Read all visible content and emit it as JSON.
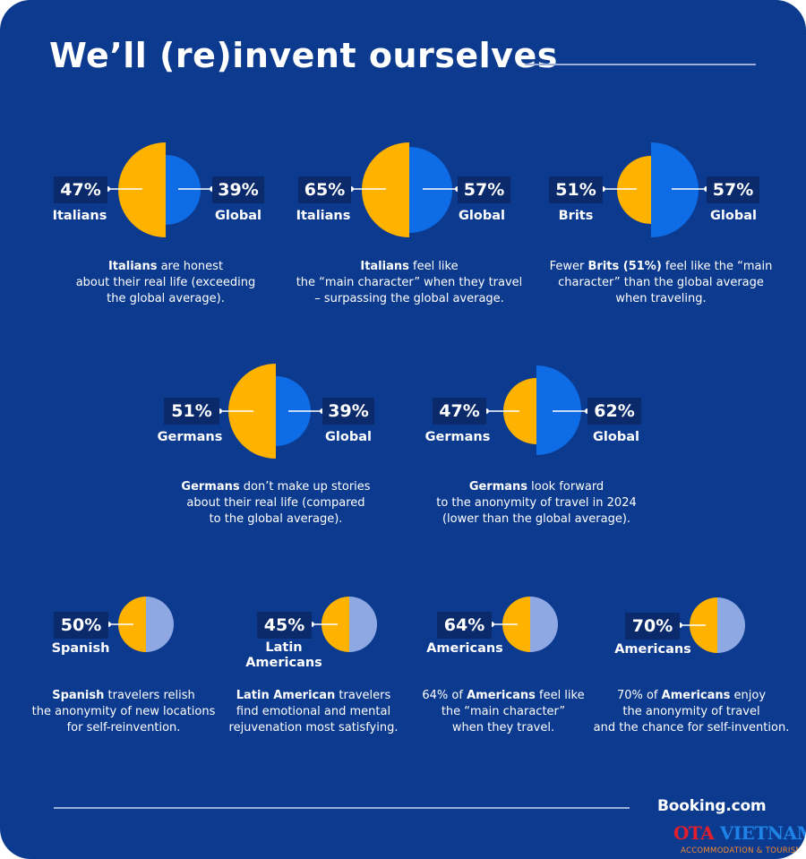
{
  "page": {
    "title": "We’ll (re)invent ourselves"
  },
  "colors": {
    "background": "#0c3a8e",
    "local": "#ffb200",
    "global": "#0e6ce6",
    "light_global": "#8ea8e3",
    "chip": "#0a2a6b"
  },
  "stats": [
    {
      "left_pct": "47%",
      "left_label": "Italians",
      "right_pct": "39%",
      "right_label": "Global",
      "desc_bold": "Italians",
      "desc_line1": " are honest",
      "desc_line2": "about their real life (exceeding",
      "desc_line3": "the global average)."
    },
    {
      "left_pct": "65%",
      "left_label": "Italians",
      "right_pct": "57%",
      "right_label": "Global",
      "desc_bold": "Italians",
      "desc_line1": " feel like",
      "desc_line2": "the “main character” when they travel",
      "desc_line3": "– surpassing the global average."
    },
    {
      "left_pct": "51%",
      "left_label": "Brits",
      "right_pct": "57%",
      "right_label": "Global",
      "desc_pre": "Fewer ",
      "desc_bold": "Brits (51%)",
      "desc_line1": " feel like the “main",
      "desc_line2": "character” than the global average",
      "desc_line3": "when traveling."
    },
    {
      "left_pct": "51%",
      "left_label": "Germans",
      "right_pct": "39%",
      "right_label": "Global",
      "desc_bold": "Germans",
      "desc_line1": " don’t make up stories",
      "desc_line2": "about their real life (compared",
      "desc_line3": "to the global average)."
    },
    {
      "left_pct": "47%",
      "left_label": "Germans",
      "right_pct": "62%",
      "right_label": "Global",
      "desc_bold": "Germans",
      "desc_line1": " look forward",
      "desc_line2": "to the anonymity of travel in 2024",
      "desc_line3": "(lower than the global average)."
    },
    {
      "left_pct": "50%",
      "left_label": "Spanish",
      "desc_bold": "Spanish",
      "desc_line1": " travelers relish",
      "desc_line2": "the anonymity of new locations",
      "desc_line3": "for self-reinvention."
    },
    {
      "left_pct": "45%",
      "left_label_1": "Latin",
      "left_label_2": "Americans",
      "desc_bold": "Latin American",
      "desc_line1": " travelers",
      "desc_line2": "find emotional and mental",
      "desc_line3": "rejuvenation most satisfying."
    },
    {
      "left_pct": "64%",
      "left_label": "Americans",
      "desc_pre": "64% of ",
      "desc_bold": "Americans",
      "desc_line1": " feel like",
      "desc_line2": "the “main character”",
      "desc_line3": "when they travel."
    },
    {
      "left_pct": "70%",
      "left_label": "Americans",
      "desc_pre": "70% of ",
      "desc_bold": "Americans",
      "desc_line1": " enjoy",
      "desc_line2": "the anonymity of travel",
      "desc_line3": "and the chance for self-invention."
    }
  ],
  "footer": {
    "brand": "Booking.com",
    "watermark_ota": "OTA",
    "watermark_vietnam": "VIETNAM",
    "watermark_sub": "ACCOMMODATION & TOURISM"
  }
}
